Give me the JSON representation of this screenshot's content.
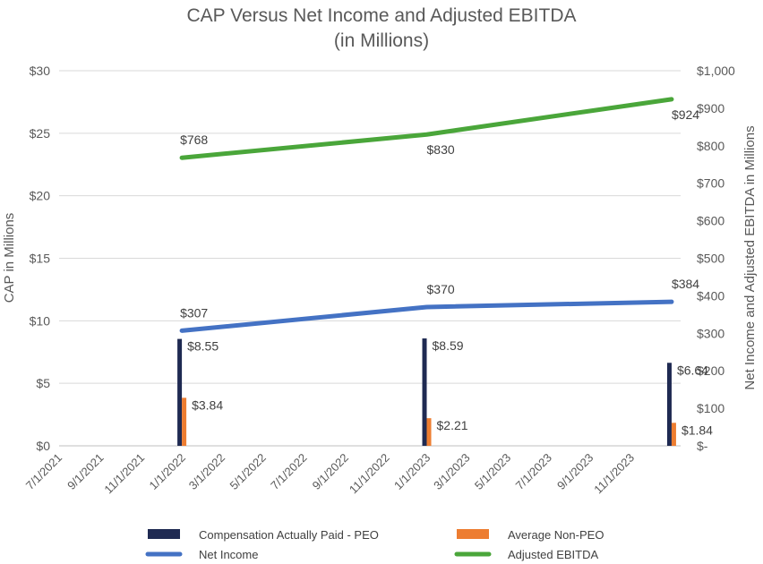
{
  "chart_data": {
    "type": "bar+line",
    "title": [
      "CAP Versus Net Income and Adjusted EBITDA",
      "(in Millions)"
    ],
    "ylabel_left": "CAP in Millions",
    "ylabel_right": "Net Income and Adjusted EBITDA in Millions",
    "y_left": {
      "min": 0,
      "max": 30,
      "ticks": [
        0,
        5,
        10,
        15,
        20,
        25,
        30
      ],
      "tick_labels": [
        "$0",
        "$5",
        "$10",
        "$15",
        "$20",
        "$25",
        "$30"
      ]
    },
    "y_right": {
      "min": 0,
      "max": 1000,
      "ticks": [
        0,
        100,
        200,
        300,
        400,
        500,
        600,
        700,
        800,
        900,
        1000
      ],
      "tick_labels": [
        "$-",
        "$100",
        "$200",
        "$300",
        "$400",
        "$500",
        "$600",
        "$700",
        "$800",
        "$900",
        "$1,000"
      ]
    },
    "x_dates": [
      "2021-07-01",
      "2021-09-01",
      "2021-11-01",
      "2022-01-01",
      "2022-03-01",
      "2022-05-01",
      "2022-07-01",
      "2022-09-01",
      "2022-11-01",
      "2023-01-01",
      "2023-03-01",
      "2023-05-01",
      "2023-07-01",
      "2023-09-01",
      "2023-11-01"
    ],
    "x_tick_labels": [
      "7/1/2021",
      "9/1/2021",
      "11/1/2021",
      "1/1/2022",
      "3/1/2022",
      "5/1/2022",
      "7/1/2022",
      "9/1/2022",
      "11/1/2022",
      "1/1/2023",
      "3/1/2023",
      "5/1/2023",
      "7/1/2023",
      "9/1/2023",
      "11/1/2023"
    ],
    "period_dates": [
      "2021-12-31",
      "2022-12-31",
      "2023-12-31"
    ],
    "series": [
      {
        "name": "Compensation Actually Paid - PEO",
        "type": "bar",
        "axis": "left",
        "color": "#1f2a52",
        "values": [
          8.55,
          8.59,
          6.64
        ],
        "labels": [
          "$8.55",
          "$8.59",
          "$6.64"
        ]
      },
      {
        "name": "Average Non-PEO",
        "type": "bar",
        "axis": "left",
        "color": "#ed7d31",
        "values": [
          3.84,
          2.21,
          1.84
        ],
        "labels": [
          "$3.84",
          "$2.21",
          "$1.84"
        ]
      },
      {
        "name": "Net Income",
        "type": "line",
        "axis": "right",
        "color": "#4472c4",
        "values": [
          307,
          370,
          384
        ],
        "labels": [
          "$307",
          "$370",
          "$384"
        ]
      },
      {
        "name": "Adjusted EBITDA",
        "type": "line",
        "axis": "right",
        "color": "#4aa63a",
        "values": [
          768,
          830,
          924
        ],
        "labels": [
          "$768",
          "$830",
          "$924"
        ]
      }
    ],
    "legend": {
      "position": "bottom",
      "entries": [
        {
          "label": "Compensation Actually Paid - PEO",
          "color": "#1f2a52",
          "kind": "bar"
        },
        {
          "label": "Average Non-PEO",
          "color": "#ed7d31",
          "kind": "bar"
        },
        {
          "label": "Net Income",
          "color": "#4472c4",
          "kind": "line"
        },
        {
          "label": "Adjusted EBITDA",
          "color": "#4aa63a",
          "kind": "line"
        }
      ]
    },
    "grid": true
  }
}
